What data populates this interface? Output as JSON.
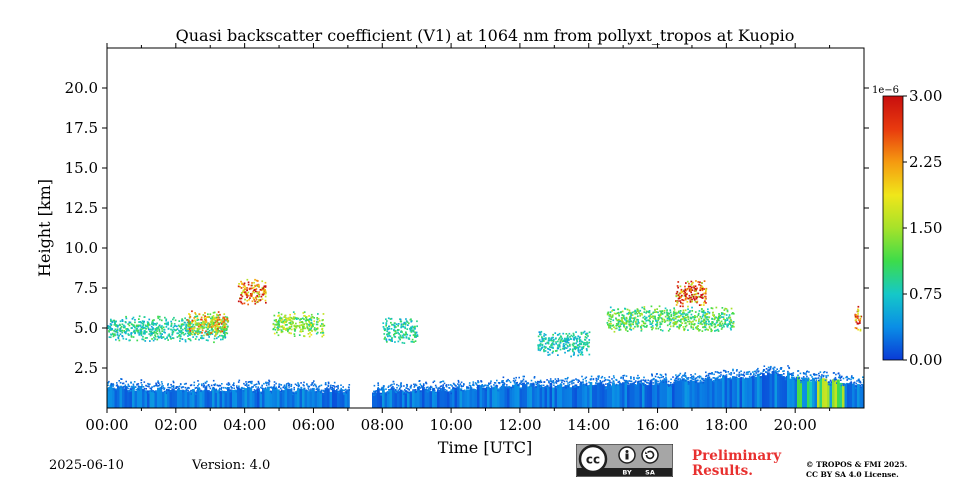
{
  "chart_data": {
    "type": "heatmap",
    "title": "Quasi backscatter coefficient (V1) at 1064 nm from pollyxt_tropos at Kuopio",
    "xlabel": "Time [UTC]",
    "ylabel": "Height [km]",
    "x_unit": "hours UTC",
    "xlim": [
      0,
      22
    ],
    "ylim": [
      0,
      22.5
    ],
    "x_ticks": [
      0,
      2,
      4,
      6,
      8,
      10,
      12,
      14,
      16,
      18,
      20
    ],
    "x_tick_labels": [
      "00:00",
      "02:00",
      "04:00",
      "06:00",
      "08:00",
      "10:00",
      "12:00",
      "14:00",
      "16:00",
      "18:00",
      "20:00"
    ],
    "y_ticks": [
      2.5,
      5.0,
      7.5,
      10.0,
      12.5,
      15.0,
      17.5,
      20.0
    ],
    "y_tick_labels": [
      "2.5",
      "5.0",
      "7.5",
      "10.0",
      "12.5",
      "15.0",
      "17.5",
      "20.0"
    ],
    "colorbar": {
      "min": 0.0,
      "max": 3.0,
      "exponent_label": "1e−6",
      "ticks": [
        0.0,
        0.75,
        1.5,
        2.25,
        3.0
      ],
      "tick_labels": [
        "0.00",
        "0.75",
        "1.50",
        "2.25",
        "3.00"
      ],
      "colormap": [
        "#0a3ad6",
        "#0a8ee6",
        "#15c8c8",
        "#3ddc4a",
        "#a6e22a",
        "#f0e61a",
        "#f59a10",
        "#e83a0e",
        "#c80e0e"
      ]
    },
    "data_gaps": [
      [
        7.0,
        7.7
      ]
    ],
    "boundary_layer": {
      "description": "low-level signal (dense, blue)",
      "points": [
        [
          0.0,
          1.3
        ],
        [
          2.0,
          1.15
        ],
        [
          4.0,
          1.2
        ],
        [
          6.0,
          1.1
        ],
        [
          7.7,
          1.1
        ],
        [
          10.0,
          1.2
        ],
        [
          12.0,
          1.4
        ],
        [
          14.0,
          1.5
        ],
        [
          16.0,
          1.6
        ],
        [
          18.0,
          1.9
        ],
        [
          19.5,
          2.2
        ],
        [
          20.2,
          1.8
        ],
        [
          22.0,
          1.5
        ]
      ]
    },
    "cloud_layers": [
      {
        "name": "layer-a",
        "x_range": [
          0.0,
          3.5
        ],
        "height_km": 5.0,
        "value": 0.9
      },
      {
        "name": "layer-b",
        "x_range": [
          2.3,
          3.5
        ],
        "height_km": 5.3,
        "value": 2.0
      },
      {
        "name": "layer-c",
        "x_range": [
          3.8,
          4.6
        ],
        "height_km": 7.3,
        "value": 2.5
      },
      {
        "name": "layer-d",
        "x_range": [
          4.8,
          6.3
        ],
        "height_km": 5.3,
        "value": 1.4
      },
      {
        "name": "layer-e",
        "x_range": [
          8.0,
          9.0
        ],
        "height_km": 4.9,
        "value": 0.9
      },
      {
        "name": "layer-f",
        "x_range": [
          12.5,
          14.0
        ],
        "height_km": 4.1,
        "value": 0.8
      },
      {
        "name": "layer-g",
        "x_range": [
          14.5,
          18.2
        ],
        "height_km": 5.6,
        "value": 1.2
      },
      {
        "name": "layer-h",
        "x_range": [
          16.5,
          17.4
        ],
        "height_km": 7.2,
        "value": 2.6
      },
      {
        "name": "layer-i",
        "x_range": [
          21.7,
          21.9
        ],
        "height_km": 5.6,
        "value": 2.7
      }
    ]
  },
  "footer": {
    "date": "2025-06-10",
    "version": "Version: 4.0",
    "license_badge": [
      "cc",
      "BY",
      "SA"
    ],
    "preliminary_line1": "Preliminary",
    "preliminary_line2": "Results.",
    "copyright_line1": "© TROPOS & FMI 2025.",
    "copyright_line2": "CC BY SA 4.0 License."
  },
  "colors": {
    "preliminary": "#e8302f",
    "badge_bg": "#a6a6a6",
    "badge_dark": "#1f1f1f"
  }
}
